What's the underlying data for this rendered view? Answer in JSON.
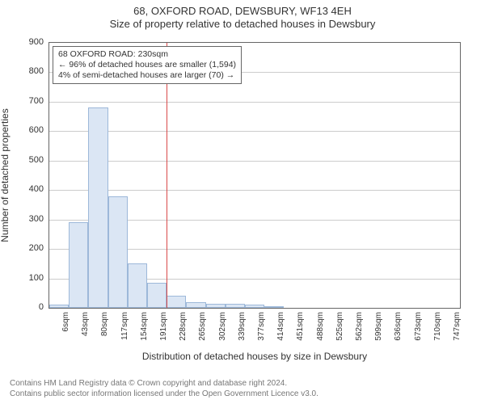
{
  "header": {
    "line1": "68, OXFORD ROAD, DEWSBURY, WF13 4EH",
    "line2": "Size of property relative to detached houses in Dewsbury"
  },
  "axes": {
    "ylabel": "Number of detached properties",
    "xlabel": "Distribution of detached houses by size in Dewsbury",
    "ylim": [
      0,
      900
    ],
    "ytick_step": 100,
    "xtick_labels": [
      "6sqm",
      "43sqm",
      "80sqm",
      "117sqm",
      "154sqm",
      "191sqm",
      "228sqm",
      "265sqm",
      "302sqm",
      "339sqm",
      "377sqm",
      "414sqm",
      "451sqm",
      "488sqm",
      "525sqm",
      "562sqm",
      "599sqm",
      "636sqm",
      "673sqm",
      "710sqm",
      "747sqm"
    ]
  },
  "histogram": {
    "type": "histogram",
    "counts": [
      10,
      290,
      680,
      380,
      150,
      85,
      40,
      20,
      15,
      15,
      10,
      5,
      0,
      0,
      0,
      0,
      0,
      0,
      0,
      0,
      0
    ],
    "bar_fill": "#dbe6f4",
    "bar_border": "#9db8d9",
    "border_color": "#666666",
    "grid_color": "#cccccc"
  },
  "reference": {
    "value_sqm": 230,
    "color": "#d94a4a",
    "bin_index_after": 6
  },
  "annotation": {
    "line1": "68 OXFORD ROAD: 230sqm",
    "line2": "← 96% of detached houses are smaller (1,594)",
    "line3": "4% of semi-detached houses are larger (70) →"
  },
  "footer": {
    "line1": "Contains HM Land Registry data © Crown copyright and database right 2024.",
    "line2": "Contains public sector information licensed under the Open Government Licence v3.0."
  },
  "style": {
    "background_color": "#ffffff",
    "text_color": "#333333",
    "footer_color": "#777777",
    "font_family": "Arial",
    "title_fontsize": 13,
    "label_fontsize": 12,
    "tick_fontsize": 11,
    "annot_fontsize": 10.5,
    "footer_fontsize": 10
  }
}
